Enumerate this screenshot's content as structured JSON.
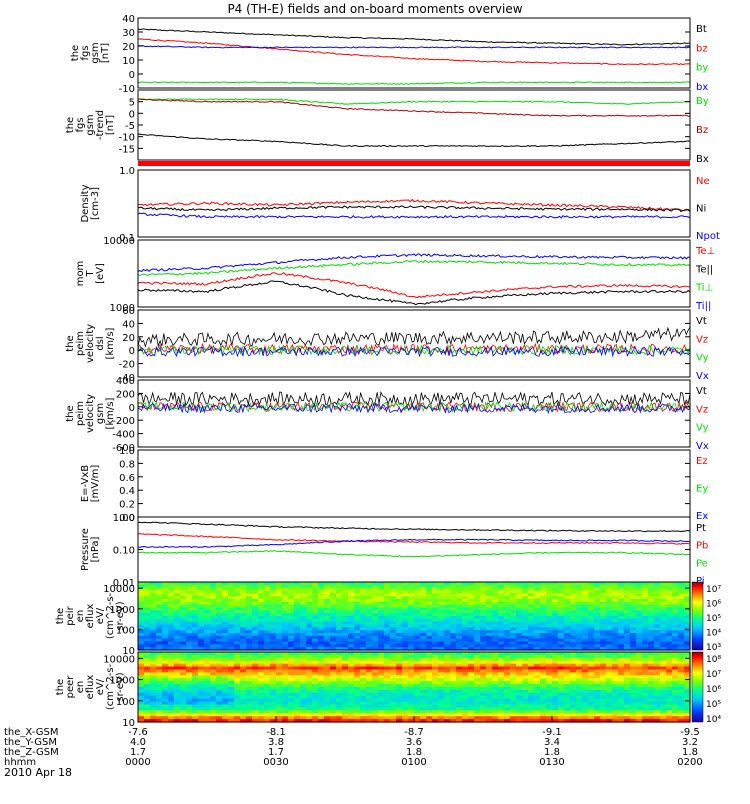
{
  "title": "P4 (TH-E) fields and on-board moments overview",
  "date_label": "2010 Apr 18",
  "time_axis": {
    "row_labels": [
      "the_X-GSM",
      "the_Y-GSM",
      "the_Z-GSM",
      "hhmm"
    ],
    "columns": [
      {
        "x": "-7.6",
        "y": "4.0",
        "z": "1.7",
        "t": "0000"
      },
      {
        "x": "-8.1",
        "y": "3.8",
        "z": "1.7",
        "t": "0030"
      },
      {
        "x": "-8.7",
        "y": "3.6",
        "z": "1.8",
        "t": "0100"
      },
      {
        "x": "-9.1",
        "y": "3.4",
        "z": "1.8",
        "t": "0130"
      },
      {
        "x": "-9.5",
        "y": "3.2",
        "z": "1.8",
        "t": "0200"
      }
    ]
  },
  "colors": {
    "black": "#000000",
    "red": "#ff0000",
    "green": "#00dd00",
    "blue": "#0000ff",
    "darkred": "#aa0000"
  },
  "chart_data": [
    {
      "id": "fgs_gsm",
      "type": "line",
      "ylabel": [
        "the",
        "fgs",
        "gsm",
        "[nT]"
      ],
      "ylim": [
        -10,
        40
      ],
      "ticks": [
        "40",
        "30",
        "20",
        "10",
        "0",
        "-10"
      ],
      "tick_values": [
        40,
        30,
        20,
        10,
        0,
        -10
      ],
      "x_minutes": [
        0,
        15,
        30,
        45,
        60,
        75,
        90,
        105,
        120
      ],
      "series": [
        {
          "name": "Bt",
          "color": "#000000",
          "values": [
            32,
            30,
            28,
            26,
            25,
            23,
            22,
            21,
            22
          ]
        },
        {
          "name": "bz",
          "color": "#ff0000",
          "values": [
            25,
            22,
            18,
            14,
            11,
            9,
            8,
            7,
            7
          ]
        },
        {
          "name": "by",
          "color": "#00dd00",
          "values": [
            -6,
            -6,
            -6,
            -7,
            -7,
            -6,
            -6,
            -6,
            -6
          ]
        },
        {
          "name": "bx",
          "color": "#0000ff",
          "values": [
            20,
            19,
            19,
            19,
            19,
            19,
            19,
            19,
            19
          ]
        }
      ],
      "legend_order": [
        0,
        1,
        2,
        3
      ]
    },
    {
      "id": "fgs_gsm_detrended",
      "type": "line",
      "ylabel": [
        "the",
        "fgs",
        "gsm",
        "-trend",
        "[nT]"
      ],
      "ylim": [
        -20,
        10
      ],
      "ticks": [
        "5",
        "0",
        "-5",
        "-10",
        "-15"
      ],
      "tick_values": [
        5,
        0,
        -5,
        -10,
        -15
      ],
      "x_minutes": [
        0,
        15,
        30,
        45,
        60,
        75,
        90,
        105,
        120
      ],
      "series": [
        {
          "name": "By",
          "color": "#00dd00",
          "values": [
            6,
            6,
            6,
            4,
            5,
            5,
            5,
            4,
            5
          ]
        },
        {
          "name": "Bz",
          "color": "#aa0000",
          "values": [
            6,
            5,
            5,
            2,
            1,
            0,
            -1,
            -1,
            -1
          ]
        },
        {
          "name": "Bx",
          "color": "#000000",
          "values": [
            -9,
            -11,
            -12,
            -14,
            -14,
            -14,
            -14,
            -13,
            -12
          ]
        }
      ],
      "legend_order": [
        0,
        1,
        2
      ]
    },
    {
      "id": "density",
      "type": "line",
      "log": true,
      "ylabel": [
        "Density",
        "[cm-3]"
      ],
      "ylim": [
        0.1,
        1.0
      ],
      "ticks": [
        "1.0",
        "0.1"
      ],
      "tick_values": [
        1.0,
        0.1
      ],
      "x_minutes": [
        0,
        15,
        30,
        45,
        60,
        75,
        90,
        105,
        120
      ],
      "series": [
        {
          "name": "Ne",
          "color": "#ff0000",
          "values": [
            0.3,
            0.32,
            0.3,
            0.33,
            0.35,
            0.32,
            0.3,
            0.28,
            0.25
          ]
        },
        {
          "name": "Ni",
          "color": "#000000",
          "values": [
            0.27,
            0.25,
            0.27,
            0.28,
            0.28,
            0.27,
            0.26,
            0.26,
            0.25
          ]
        },
        {
          "name": "Npot",
          "color": "#0000ff",
          "values": [
            0.22,
            0.2,
            0.2,
            0.2,
            0.2,
            0.2,
            0.2,
            0.2,
            0.2
          ]
        }
      ],
      "legend_order": [
        0,
        1,
        2
      ]
    },
    {
      "id": "temperature",
      "type": "line",
      "log": true,
      "ylabel": [
        "mom",
        "T",
        "[eV]"
      ],
      "ylim": [
        1000,
        10000
      ],
      "ticks": [
        "10000",
        "1000"
      ],
      "tick_values": [
        10000,
        1000
      ],
      "x_minutes": [
        0,
        15,
        30,
        45,
        60,
        75,
        90,
        105,
        120
      ],
      "series": [
        {
          "name": "Te⊥",
          "color": "#ff0000",
          "values": [
            2300,
            2200,
            3200,
            2300,
            1400,
            1700,
            2000,
            2100,
            2000
          ]
        },
        {
          "name": "Te||",
          "color": "#000000",
          "values": [
            1800,
            1700,
            2400,
            1500,
            1100,
            1400,
            1600,
            1700,
            1700
          ]
        },
        {
          "name": "Ti⊥",
          "color": "#00dd00",
          "values": [
            3000,
            3200,
            3800,
            4300,
            4800,
            4700,
            4500,
            4300,
            4200
          ]
        },
        {
          "name": "Ti||",
          "color": "#0000ff",
          "values": [
            3500,
            3800,
            4600,
            5500,
            6000,
            5800,
            5600,
            5500,
            5400
          ]
        }
      ],
      "legend_order": [
        0,
        1,
        2,
        3
      ]
    },
    {
      "id": "peim_velocity_dsl",
      "type": "line",
      "noisy": true,
      "ylabel": [
        "the",
        "peim",
        "velocity",
        "dsl",
        "[km/s]"
      ],
      "ylim": [
        -40,
        60
      ],
      "ticks": [
        "60",
        "40",
        "20",
        "0",
        "-20",
        "-40"
      ],
      "tick_values": [
        60,
        40,
        20,
        0,
        -20,
        -40
      ],
      "x_minutes": [
        0,
        15,
        30,
        45,
        60,
        75,
        90,
        105,
        120
      ],
      "series": [
        {
          "name": "Vt",
          "color": "#000000",
          "values": [
            15,
            16,
            17,
            18,
            18,
            19,
            19,
            20,
            25
          ]
        },
        {
          "name": "Vz",
          "color": "#ff0000",
          "values": [
            2,
            2,
            2,
            2,
            2,
            2,
            2,
            2,
            2
          ]
        },
        {
          "name": "Vy",
          "color": "#00dd00",
          "values": [
            0,
            0,
            0,
            0,
            0,
            0,
            0,
            0,
            0
          ]
        },
        {
          "name": "Vx",
          "color": "#0000ff",
          "values": [
            -2,
            -2,
            -2,
            -2,
            -2,
            -2,
            -2,
            -2,
            -2
          ]
        }
      ],
      "legend_order": [
        0,
        1,
        2,
        3
      ]
    },
    {
      "id": "peim_velocity_gsm",
      "type": "line",
      "noisy": true,
      "ylabel": [
        "the",
        "peim",
        "velocity",
        "gsm",
        "[km/s]"
      ],
      "ylim": [
        -600,
        400
      ],
      "ticks": [
        "400",
        "200",
        "0",
        "-200",
        "-400",
        "-600"
      ],
      "tick_values": [
        400,
        200,
        0,
        -200,
        -400,
        -600
      ],
      "x_minutes": [
        0,
        15,
        30,
        45,
        60,
        75,
        90,
        105,
        120
      ],
      "series": [
        {
          "name": "Vt",
          "color": "#000000",
          "values": [
            120,
            120,
            120,
            120,
            120,
            120,
            120,
            120,
            120
          ]
        },
        {
          "name": "Vz",
          "color": "#ff0000",
          "values": [
            0,
            0,
            0,
            0,
            0,
            0,
            0,
            0,
            0
          ]
        },
        {
          "name": "Vy",
          "color": "#00dd00",
          "values": [
            0,
            0,
            0,
            0,
            0,
            0,
            0,
            0,
            0
          ]
        },
        {
          "name": "Vx",
          "color": "#0000ff",
          "values": [
            -20,
            -20,
            -20,
            -20,
            -20,
            -20,
            -20,
            -20,
            -20
          ]
        }
      ],
      "legend_order": [
        0,
        1,
        2,
        3
      ]
    },
    {
      "id": "e_vxb",
      "type": "line",
      "ylabel": [
        "E=-VxB",
        "[mV/m]"
      ],
      "ylim": [
        0,
        1.0
      ],
      "ticks": [
        "1.0",
        "0.8",
        "0.6",
        "0.4",
        "0.2",
        "0.0"
      ],
      "tick_values": [
        1.0,
        0.8,
        0.6,
        0.4,
        0.2,
        0.0
      ],
      "x_minutes": [],
      "series": [
        {
          "name": "Ez",
          "color": "#ff0000",
          "values": []
        },
        {
          "name": "Ey",
          "color": "#00dd00",
          "values": []
        },
        {
          "name": "Ex",
          "color": "#0000ff",
          "values": []
        }
      ],
      "legend_order": [
        0,
        1,
        2
      ]
    },
    {
      "id": "pressure",
      "type": "line",
      "log": true,
      "ylabel": [
        "Pressure",
        "[nPa]"
      ],
      "ylim": [
        0.01,
        1.0
      ],
      "ticks": [
        "1.00",
        "0.10",
        "0.01"
      ],
      "tick_values": [
        1.0,
        0.1,
        0.01
      ],
      "x_minutes": [
        0,
        15,
        30,
        45,
        60,
        75,
        90,
        105,
        120
      ],
      "series": [
        {
          "name": "Pt",
          "color": "#000000",
          "values": [
            0.7,
            0.6,
            0.5,
            0.45,
            0.42,
            0.4,
            0.38,
            0.37,
            0.37
          ]
        },
        {
          "name": "Pb",
          "color": "#ff0000",
          "values": [
            0.3,
            0.25,
            0.2,
            0.18,
            0.17,
            0.16,
            0.16,
            0.16,
            0.15
          ]
        },
        {
          "name": "Pe",
          "color": "#00dd00",
          "values": [
            0.08,
            0.08,
            0.09,
            0.07,
            0.06,
            0.07,
            0.08,
            0.08,
            0.07
          ]
        },
        {
          "name": "Pi",
          "color": "#0000ff",
          "values": [
            0.12,
            0.12,
            0.14,
            0.18,
            0.2,
            0.2,
            0.19,
            0.19,
            0.18
          ]
        }
      ],
      "legend_order": [
        0,
        1,
        2,
        3
      ]
    },
    {
      "id": "peir_en_eflux",
      "type": "heatmap",
      "log": true,
      "ylabel": [
        "the",
        "peir",
        "en",
        "eflux",
        "eV/",
        "(cm^2-s-",
        "sr-eV)"
      ],
      "ylim": [
        10,
        20000
      ],
      "ticks": [
        "10000",
        "1000",
        "100",
        "10"
      ],
      "tick_values": [
        10000,
        1000,
        100,
        10
      ],
      "colorbar_ticks": [
        "10⁷",
        "10⁶",
        "10⁵",
        "10⁴",
        "10³"
      ],
      "energy_profile": [
        {
          "energy": 15000,
          "level": 0.5
        },
        {
          "energy": 8000,
          "level": 0.6
        },
        {
          "energy": 4000,
          "level": 0.62
        },
        {
          "energy": 2000,
          "level": 0.58
        },
        {
          "energy": 1000,
          "level": 0.5
        },
        {
          "energy": 400,
          "level": 0.42
        },
        {
          "energy": 150,
          "level": 0.34
        },
        {
          "energy": 60,
          "level": 0.25
        },
        {
          "energy": 20,
          "level": 0.18
        },
        {
          "energy": 12,
          "level": 0.22
        }
      ]
    },
    {
      "id": "peer_en_eflux",
      "type": "heatmap",
      "log": true,
      "ylabel": [
        "the",
        "peer",
        "en",
        "eflux",
        "eV/",
        "(cm^2-s-",
        "sr-eV)"
      ],
      "ylim": [
        10,
        20000
      ],
      "ticks": [
        "10000",
        "1000",
        "100",
        "10"
      ],
      "tick_values": [
        10000,
        1000,
        100,
        10
      ],
      "colorbar_ticks": [
        "10⁸",
        "10⁷",
        "10⁶",
        "10⁵",
        "10⁴"
      ],
      "energy_profile": [
        {
          "energy": 15000,
          "level": 0.5
        },
        {
          "energy": 8000,
          "level": 0.62
        },
        {
          "energy": 3500,
          "level": 0.88
        },
        {
          "energy": 1500,
          "level": 0.72
        },
        {
          "energy": 600,
          "level": 0.55
        },
        {
          "energy": 250,
          "level": 0.42
        },
        {
          "energy": 100,
          "level": 0.38
        },
        {
          "energy": 40,
          "level": 0.45
        },
        {
          "energy": 15,
          "level": 0.85
        },
        {
          "energy": 11,
          "level": 0.92
        }
      ]
    }
  ]
}
